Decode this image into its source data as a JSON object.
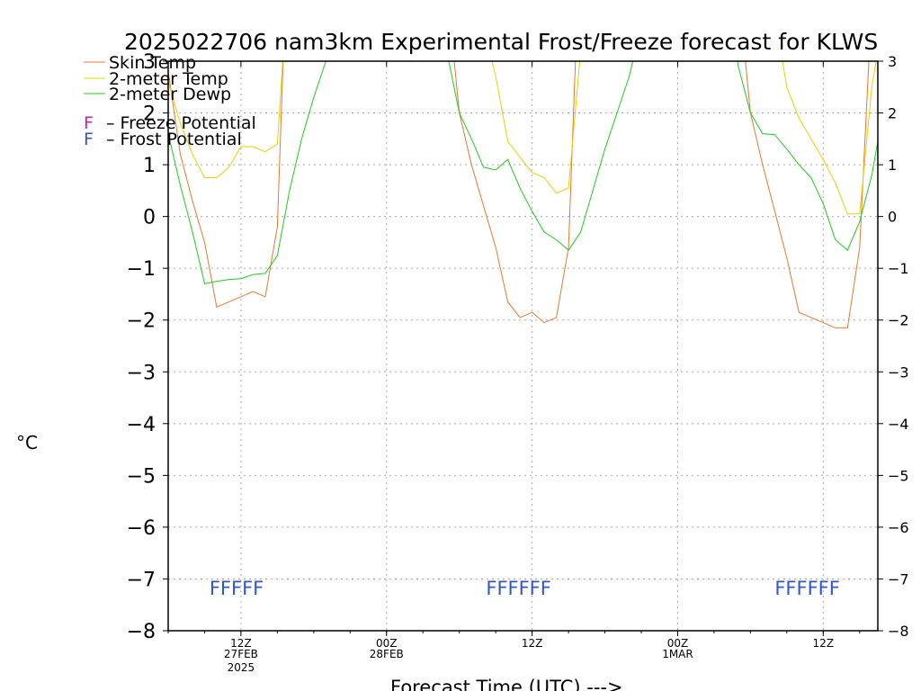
{
  "colors": {
    "skin": "#e8772e",
    "temp": "#e8d000",
    "dewp": "#1fcc1f",
    "freeze": "#cc2299",
    "frost": "#3355cc",
    "grid": "#aaaaaa",
    "axis": "#000000"
  },
  "chart_data": {
    "type": "line",
    "title": "2025022706 nam3km Experimental Frost/Freeze forecast for KLWS",
    "xlabel": "Forecast Time (UTC) --->",
    "ylabel": "°C",
    "ylim": [
      -8,
      3
    ],
    "xlim_hours_after_06Z_27FEB": [
      0,
      58.5
    ],
    "grid": true,
    "legend_position": "top-left",
    "y_ticks": [
      -8,
      -7,
      -6,
      -5,
      -4,
      -3,
      -2,
      -1,
      0,
      1,
      2,
      3
    ],
    "x_ticks": [
      {
        "hour": 6,
        "label": "12Z",
        "sub1": "27FEB",
        "sub2": "2025"
      },
      {
        "hour": 18,
        "label": "00Z",
        "sub1": "28FEB",
        "sub2": ""
      },
      {
        "hour": 30,
        "label": "12Z",
        "sub1": "",
        "sub2": ""
      },
      {
        "hour": 42,
        "label": "00Z",
        "sub1": "1MAR",
        "sub2": ""
      },
      {
        "hour": 54,
        "label": "12Z",
        "sub1": "",
        "sub2": ""
      }
    ],
    "series": [
      {
        "name": "Skin Temp",
        "color_key": "skin",
        "points": [
          [
            0,
            2.8
          ],
          [
            1,
            1.2
          ],
          [
            2,
            0.3
          ],
          [
            3,
            -0.5
          ],
          [
            4,
            -1.75
          ],
          [
            5,
            -1.65
          ],
          [
            6,
            -1.55
          ],
          [
            7,
            -1.45
          ],
          [
            8,
            -1.55
          ],
          [
            9,
            -0.2
          ],
          [
            9.5,
            3.2
          ],
          [
            null,
            null
          ],
          [
            23.5,
            3.2
          ],
          [
            24,
            2.0
          ],
          [
            25,
            1.0
          ],
          [
            26,
            0.2
          ],
          [
            27,
            -0.6
          ],
          [
            28,
            -1.65
          ],
          [
            29,
            -1.95
          ],
          [
            30,
            -1.85
          ],
          [
            31,
            -2.05
          ],
          [
            32,
            -1.95
          ],
          [
            33,
            -0.6
          ],
          [
            33.6,
            3.2
          ],
          [
            null,
            null
          ],
          [
            47.5,
            3.2
          ],
          [
            48,
            2.0
          ],
          [
            49,
            1.0
          ],
          [
            50,
            0.1
          ],
          [
            51,
            -0.8
          ],
          [
            52,
            -1.85
          ],
          [
            53,
            -1.95
          ],
          [
            54,
            -2.05
          ],
          [
            55,
            -2.15
          ],
          [
            56,
            -2.15
          ],
          [
            57,
            -0.6
          ],
          [
            57.8,
            3.2
          ]
        ]
      },
      {
        "name": "2-meter Temp",
        "color_key": "temp",
        "points": [
          [
            0,
            2.6
          ],
          [
            1,
            1.8
          ],
          [
            2,
            1.2
          ],
          [
            3,
            0.75
          ],
          [
            4,
            0.75
          ],
          [
            5,
            0.95
          ],
          [
            6,
            1.35
          ],
          [
            7,
            1.35
          ],
          [
            8,
            1.25
          ],
          [
            9,
            1.4
          ],
          [
            9.5,
            3.2
          ],
          [
            null,
            null
          ],
          [
            26.5,
            3.2
          ],
          [
            27,
            2.7
          ],
          [
            28,
            1.45
          ],
          [
            29,
            1.15
          ],
          [
            30,
            0.85
          ],
          [
            31,
            0.75
          ],
          [
            32,
            0.45
          ],
          [
            33,
            0.55
          ],
          [
            34,
            3.2
          ],
          [
            null,
            null
          ],
          [
            50.5,
            3.2
          ],
          [
            51,
            2.5
          ],
          [
            52,
            1.9
          ],
          [
            53,
            1.5
          ],
          [
            54,
            1.1
          ],
          [
            55,
            0.65
          ],
          [
            56,
            0.05
          ],
          [
            57,
            0.05
          ],
          [
            58,
            2.5
          ],
          [
            58.5,
            3.2
          ]
        ]
      },
      {
        "name": "2-meter Dewp",
        "color_key": "dewp",
        "points": [
          [
            0,
            1.6
          ],
          [
            1,
            0.6
          ],
          [
            2,
            -0.3
          ],
          [
            3,
            -1.3
          ],
          [
            4,
            -1.25
          ],
          [
            5,
            -1.22
          ],
          [
            6,
            -1.2
          ],
          [
            7,
            -1.12
          ],
          [
            8,
            -1.1
          ],
          [
            9,
            -0.75
          ],
          [
            10,
            0.5
          ],
          [
            11,
            1.5
          ],
          [
            12,
            2.3
          ],
          [
            13,
            3.0
          ],
          [
            13.2,
            3.2
          ],
          [
            null,
            null
          ],
          [
            21.8,
            3.2
          ],
          [
            22,
            3.0
          ],
          [
            23,
            3.15
          ],
          [
            24,
            2.0
          ],
          [
            25,
            1.5
          ],
          [
            26,
            0.95
          ],
          [
            27,
            0.9
          ],
          [
            28,
            1.1
          ],
          [
            29,
            0.55
          ],
          [
            30,
            0.1
          ],
          [
            31,
            -0.3
          ],
          [
            32,
            -0.45
          ],
          [
            33,
            -0.65
          ],
          [
            34,
            -0.3
          ],
          [
            35,
            0.5
          ],
          [
            36,
            1.3
          ],
          [
            37,
            2.0
          ],
          [
            38,
            2.7
          ],
          [
            38.5,
            3.2
          ],
          [
            null,
            null
          ],
          [
            46.8,
            3.2
          ],
          [
            47,
            2.9
          ],
          [
            48,
            2.0
          ],
          [
            49,
            1.6
          ],
          [
            50,
            1.58
          ],
          [
            51,
            1.3
          ],
          [
            52,
            1.0
          ],
          [
            53,
            0.75
          ],
          [
            54,
            0.25
          ],
          [
            55,
            -0.45
          ],
          [
            56,
            -0.65
          ],
          [
            57,
            -0.1
          ],
          [
            58,
            0.8
          ],
          [
            58.5,
            1.45
          ]
        ]
      }
    ],
    "legend": {
      "series_labels": [
        "Skin Temp",
        "2-meter Temp",
        "2-meter Dewp"
      ],
      "freeze_letter": "F",
      "freeze_label": "– Freeze Potential",
      "frost_letter": "F",
      "frost_label": "– Frost Potential"
    },
    "frost_markers": [
      {
        "start_hour": 3.4,
        "text": "FFFFF"
      },
      {
        "start_hour": 26.2,
        "text": "FFFFFF"
      },
      {
        "start_hour": 50.0,
        "text": "FFFFFF"
      }
    ],
    "frost_marker_y": -7.15
  }
}
